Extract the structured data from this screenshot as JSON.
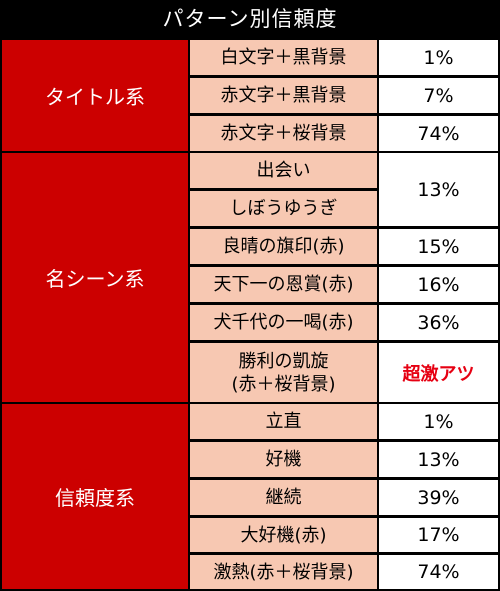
{
  "title": "パターン別信頼度",
  "categories": [
    {
      "label": "タイトル系"
    },
    {
      "label": "名シーン系"
    },
    {
      "label": "信頼度系"
    }
  ],
  "rows": [
    {
      "name": "白文字＋黒背景",
      "value": "1%"
    },
    {
      "name": "赤文字＋黒背景",
      "value": "7%"
    },
    {
      "name": "赤文字＋桜背景",
      "value": "74%"
    },
    {
      "name": "出会い",
      "value": "13%"
    },
    {
      "name": "しぼうゆうぎ"
    },
    {
      "name": "良晴の旗印(赤)",
      "value": "15%"
    },
    {
      "name": "天下一の恩賞(赤)",
      "value": "16%"
    },
    {
      "name": "犬千代の一喝(赤)",
      "value": "36%"
    },
    {
      "name": "勝利の凱旋\n(赤＋桜背景)",
      "value": "超激アツ",
      "highlight": "#e60012"
    },
    {
      "name": "立直",
      "value": "1%"
    },
    {
      "name": "好機",
      "value": "13%"
    },
    {
      "name": "継続",
      "value": "39%"
    },
    {
      "name": "大好機(赤)",
      "value": "17%"
    },
    {
      "name": "激熱(赤＋桜背景)",
      "value": "74%"
    }
  ]
}
